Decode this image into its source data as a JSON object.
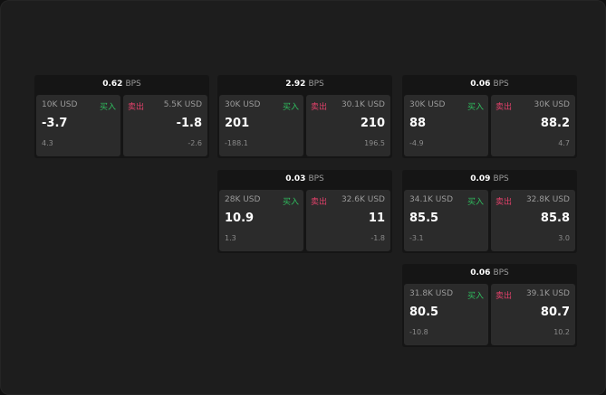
{
  "colors": {
    "buy": "#2fbf5f",
    "sell": "#e0406a"
  },
  "unit": "BPS",
  "buy_label": "买入",
  "sell_label": "卖出",
  "quotes": [
    {
      "spread": "0.62",
      "bid": {
        "amount": "10K USD",
        "price": "-3.7",
        "change": "4.3"
      },
      "ask": {
        "amount": "5.5K USD",
        "price": "-1.8",
        "change": "-2.6"
      }
    },
    {
      "spread": "2.92",
      "bid": {
        "amount": "30K USD",
        "price": "201",
        "change": "-188.1"
      },
      "ask": {
        "amount": "30.1K USD",
        "price": "210",
        "change": "196.5"
      }
    },
    {
      "spread": "0.06",
      "bid": {
        "amount": "30K USD",
        "price": "88",
        "change": "-4.9"
      },
      "ask": {
        "amount": "30K USD",
        "price": "88.2",
        "change": "4.7"
      }
    },
    {
      "spread": "0.03",
      "bid": {
        "amount": "28K USD",
        "price": "10.9",
        "change": "1.3"
      },
      "ask": {
        "amount": "32.6K USD",
        "price": "11",
        "change": "-1.8"
      }
    },
    {
      "spread": "0.09",
      "bid": {
        "amount": "34.1K USD",
        "price": "85.5",
        "change": "-3.1"
      },
      "ask": {
        "amount": "32.8K USD",
        "price": "85.8",
        "change": "3.0"
      }
    },
    {
      "spread": "0.06",
      "bid": {
        "amount": "31.8K USD",
        "price": "80.5",
        "change": "-10.8"
      },
      "ask": {
        "amount": "39.1K USD",
        "price": "80.7",
        "change": "10.2"
      }
    }
  ]
}
